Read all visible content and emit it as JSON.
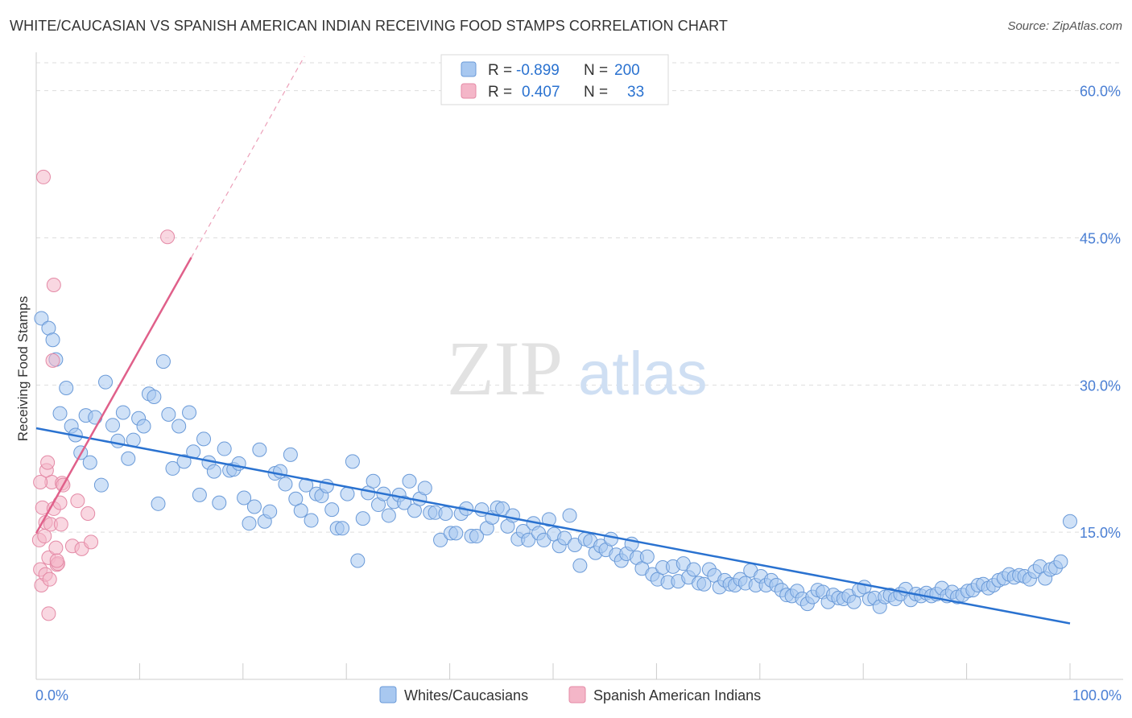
{
  "header": {
    "title": "WHITE/CAUCASIAN VS SPANISH AMERICAN INDIAN RECEIVING FOOD STAMPS CORRELATION CHART",
    "source": "Source: ZipAtlas.com"
  },
  "watermark": {
    "zip": "ZIP",
    "atlas": "atlas"
  },
  "legend": {
    "rows": [
      {
        "r_label": "R =",
        "r_value": "-0.899",
        "n_label": "N =",
        "n_value": "200",
        "color": "#a8c8f0"
      },
      {
        "r_label": "R =",
        "r_value": "0.407",
        "n_label": "N =",
        "n_value": "33",
        "color": "#f4b6c8"
      }
    ]
  },
  "chart_data": {
    "type": "scatter",
    "title": "WHITE/CAUCASIAN VS SPANISH AMERICAN INDIAN RECEIVING FOOD STAMPS CORRELATION CHART",
    "xlabel": "",
    "ylabel": "Receiving Food Stamps",
    "xlim": [
      0,
      100
    ],
    "ylim": [
      0,
      63.5
    ],
    "y_ticks": [
      15,
      30,
      45,
      60
    ],
    "y_tick_labels": [
      "15.0%",
      "30.0%",
      "45.0%",
      "60.0%"
    ],
    "x_tick_labels": [
      "0.0%",
      "100.0%"
    ],
    "grid": true,
    "legend_position": "top-center",
    "series": [
      {
        "name": "Whites/Caucasians",
        "color": "#a8c8f0",
        "stroke": "#6a9ad8",
        "trend": {
          "x": [
            0,
            100
          ],
          "y": [
            25.6,
            5.7
          ],
          "color": "#2a72d0"
        },
        "points": [
          [
            0.5,
            36.8
          ],
          [
            1.2,
            35.8
          ],
          [
            1.6,
            34.6
          ],
          [
            1.9,
            32.6
          ],
          [
            2.3,
            27.1
          ],
          [
            2.9,
            29.7
          ],
          [
            3.4,
            25.8
          ],
          [
            3.8,
            24.9
          ],
          [
            4.3,
            23.1
          ],
          [
            4.8,
            26.9
          ],
          [
            5.2,
            22.1
          ],
          [
            5.7,
            26.7
          ],
          [
            6.3,
            19.8
          ],
          [
            6.7,
            30.3
          ],
          [
            7.4,
            25.9
          ],
          [
            7.9,
            24.3
          ],
          [
            8.4,
            27.2
          ],
          [
            8.9,
            22.5
          ],
          [
            9.4,
            24.4
          ],
          [
            9.9,
            26.6
          ],
          [
            10.4,
            25.8
          ],
          [
            10.9,
            29.1
          ],
          [
            11.4,
            28.8
          ],
          [
            11.8,
            17.9
          ],
          [
            12.3,
            32.4
          ],
          [
            12.8,
            27.0
          ],
          [
            13.2,
            21.5
          ],
          [
            13.8,
            25.8
          ],
          [
            14.3,
            22.2
          ],
          [
            14.8,
            27.2
          ],
          [
            15.2,
            23.2
          ],
          [
            15.8,
            18.8
          ],
          [
            16.2,
            24.5
          ],
          [
            16.7,
            22.1
          ],
          [
            17.2,
            21.2
          ],
          [
            17.7,
            18.0
          ],
          [
            18.2,
            23.5
          ],
          [
            18.7,
            21.3
          ],
          [
            19.1,
            21.4
          ],
          [
            19.6,
            22.0
          ],
          [
            20.1,
            18.5
          ],
          [
            20.6,
            15.9
          ],
          [
            21.1,
            17.6
          ],
          [
            21.6,
            23.4
          ],
          [
            22.1,
            16.1
          ],
          [
            22.6,
            17.1
          ],
          [
            23.1,
            21.0
          ],
          [
            23.6,
            21.2
          ],
          [
            24.1,
            19.9
          ],
          [
            24.6,
            22.9
          ],
          [
            25.1,
            18.4
          ],
          [
            25.6,
            17.2
          ],
          [
            26.1,
            19.8
          ],
          [
            26.6,
            16.2
          ],
          [
            27.1,
            18.9
          ],
          [
            27.6,
            18.7
          ],
          [
            28.1,
            19.7
          ],
          [
            28.6,
            17.3
          ],
          [
            29.1,
            15.4
          ],
          [
            29.6,
            15.4
          ],
          [
            30.1,
            18.9
          ],
          [
            30.6,
            22.2
          ],
          [
            31.1,
            12.1
          ],
          [
            31.6,
            16.4
          ],
          [
            32.1,
            19.0
          ],
          [
            32.6,
            20.2
          ],
          [
            33.1,
            17.8
          ],
          [
            33.6,
            18.9
          ],
          [
            34.1,
            16.7
          ],
          [
            34.6,
            18.1
          ],
          [
            35.1,
            18.8
          ],
          [
            35.6,
            18.0
          ],
          [
            36.1,
            20.2
          ],
          [
            36.6,
            17.2
          ],
          [
            37.1,
            18.4
          ],
          [
            37.6,
            19.5
          ],
          [
            38.1,
            17.0
          ],
          [
            38.6,
            17.0
          ],
          [
            39.1,
            14.2
          ],
          [
            39.6,
            16.9
          ],
          [
            40.1,
            14.9
          ],
          [
            40.6,
            14.9
          ],
          [
            41.1,
            16.9
          ],
          [
            41.6,
            17.4
          ],
          [
            42.1,
            14.6
          ],
          [
            42.6,
            14.6
          ],
          [
            43.1,
            17.3
          ],
          [
            43.6,
            15.4
          ],
          [
            44.1,
            16.5
          ],
          [
            44.6,
            17.5
          ],
          [
            45.1,
            17.4
          ],
          [
            45.6,
            15.6
          ],
          [
            46.1,
            16.7
          ],
          [
            46.6,
            14.3
          ],
          [
            47.1,
            15.1
          ],
          [
            47.6,
            14.2
          ],
          [
            48.1,
            15.9
          ],
          [
            48.6,
            14.9
          ],
          [
            49.1,
            14.2
          ],
          [
            49.6,
            16.3
          ],
          [
            50.1,
            14.8
          ],
          [
            50.6,
            13.6
          ],
          [
            51.1,
            14.4
          ],
          [
            51.6,
            16.7
          ],
          [
            52.1,
            13.7
          ],
          [
            52.6,
            11.6
          ],
          [
            53.1,
            14.3
          ],
          [
            53.6,
            14.1
          ],
          [
            54.1,
            12.9
          ],
          [
            54.6,
            13.6
          ],
          [
            55.1,
            13.2
          ],
          [
            55.6,
            14.3
          ],
          [
            56.1,
            12.7
          ],
          [
            56.6,
            12.1
          ],
          [
            57.1,
            12.8
          ],
          [
            57.6,
            13.8
          ],
          [
            58.1,
            12.4
          ],
          [
            58.6,
            11.3
          ],
          [
            59.1,
            12.5
          ],
          [
            59.6,
            10.7
          ],
          [
            60.1,
            10.2
          ],
          [
            60.6,
            11.4
          ],
          [
            61.1,
            9.9
          ],
          [
            61.6,
            11.5
          ],
          [
            62.1,
            10.0
          ],
          [
            62.6,
            11.8
          ],
          [
            63.1,
            10.4
          ],
          [
            63.6,
            11.2
          ],
          [
            64.1,
            9.8
          ],
          [
            64.6,
            9.7
          ],
          [
            65.1,
            11.2
          ],
          [
            65.6,
            10.6
          ],
          [
            66.1,
            9.4
          ],
          [
            66.6,
            10.1
          ],
          [
            67.1,
            9.7
          ],
          [
            67.6,
            9.6
          ],
          [
            68.1,
            10.2
          ],
          [
            68.6,
            9.8
          ],
          [
            69.1,
            11.1
          ],
          [
            69.6,
            9.6
          ],
          [
            70.1,
            10.5
          ],
          [
            70.6,
            9.6
          ],
          [
            71.1,
            10.1
          ],
          [
            71.6,
            9.6
          ],
          [
            72.1,
            9.1
          ],
          [
            72.6,
            8.6
          ],
          [
            73.1,
            8.5
          ],
          [
            73.6,
            9.0
          ],
          [
            74.1,
            8.2
          ],
          [
            74.6,
            7.7
          ],
          [
            75.1,
            8.4
          ],
          [
            75.6,
            9.1
          ],
          [
            76.1,
            8.9
          ],
          [
            76.6,
            7.9
          ],
          [
            77.1,
            8.6
          ],
          [
            77.6,
            8.3
          ],
          [
            78.1,
            8.2
          ],
          [
            78.6,
            8.5
          ],
          [
            79.1,
            7.9
          ],
          [
            79.6,
            9.1
          ],
          [
            80.1,
            9.4
          ],
          [
            80.6,
            8.2
          ],
          [
            81.1,
            8.3
          ],
          [
            81.6,
            7.4
          ],
          [
            82.1,
            8.4
          ],
          [
            82.6,
            8.6
          ],
          [
            83.1,
            8.2
          ],
          [
            83.6,
            8.7
          ],
          [
            84.1,
            9.2
          ],
          [
            84.6,
            8.1
          ],
          [
            85.1,
            8.7
          ],
          [
            85.6,
            8.5
          ],
          [
            86.1,
            8.8
          ],
          [
            86.6,
            8.5
          ],
          [
            87.1,
            8.7
          ],
          [
            87.6,
            9.3
          ],
          [
            88.1,
            8.5
          ],
          [
            88.6,
            8.9
          ],
          [
            89.1,
            8.4
          ],
          [
            89.6,
            8.6
          ],
          [
            90.1,
            9.0
          ],
          [
            90.6,
            9.1
          ],
          [
            91.1,
            9.6
          ],
          [
            91.6,
            9.7
          ],
          [
            92.1,
            9.3
          ],
          [
            92.6,
            9.6
          ],
          [
            93.1,
            10.1
          ],
          [
            93.6,
            10.3
          ],
          [
            94.1,
            10.7
          ],
          [
            94.6,
            10.4
          ],
          [
            95.1,
            10.6
          ],
          [
            95.6,
            10.5
          ],
          [
            96.1,
            10.2
          ],
          [
            96.6,
            11.0
          ],
          [
            97.1,
            11.5
          ],
          [
            97.6,
            10.3
          ],
          [
            98.1,
            11.2
          ],
          [
            98.6,
            11.4
          ],
          [
            99.1,
            12.0
          ],
          [
            100.0,
            16.1
          ]
        ]
      },
      {
        "name": "Spanish American Indians",
        "color": "#f4b6c8",
        "stroke": "#e48aa6",
        "trend": {
          "x": [
            0,
            15
          ],
          "y": [
            14.9,
            43.0
          ],
          "color": "#e0608a"
        },
        "points": [
          [
            0.3,
            14.2
          ],
          [
            0.4,
            11.2
          ],
          [
            0.5,
            9.6
          ],
          [
            0.6,
            17.5
          ],
          [
            0.7,
            51.2
          ],
          [
            0.8,
            14.6
          ],
          [
            0.9,
            10.7
          ],
          [
            0.9,
            16.0
          ],
          [
            1.0,
            21.3
          ],
          [
            1.1,
            22.1
          ],
          [
            1.2,
            12.4
          ],
          [
            1.2,
            6.7
          ],
          [
            1.3,
            10.2
          ],
          [
            1.4,
            15.8
          ],
          [
            1.5,
            20.1
          ],
          [
            1.6,
            32.5
          ],
          [
            1.7,
            17.4
          ],
          [
            1.7,
            40.2
          ],
          [
            1.9,
            13.4
          ],
          [
            2.0,
            11.7
          ],
          [
            2.1,
            11.8
          ],
          [
            2.3,
            18.0
          ],
          [
            2.4,
            15.8
          ],
          [
            2.5,
            20.0
          ],
          [
            2.6,
            19.8
          ],
          [
            3.5,
            13.6
          ],
          [
            4.0,
            18.2
          ],
          [
            4.4,
            13.3
          ],
          [
            5.3,
            14.0
          ],
          [
            5.0,
            16.9
          ],
          [
            0.4,
            20.1
          ],
          [
            2.0,
            12.1
          ],
          [
            12.7,
            45.1
          ]
        ]
      }
    ]
  },
  "bottom_legend": [
    {
      "label": "Whites/Caucasians",
      "color": "#a8c8f0"
    },
    {
      "label": "Spanish American Indians",
      "color": "#f4b6c8"
    }
  ]
}
